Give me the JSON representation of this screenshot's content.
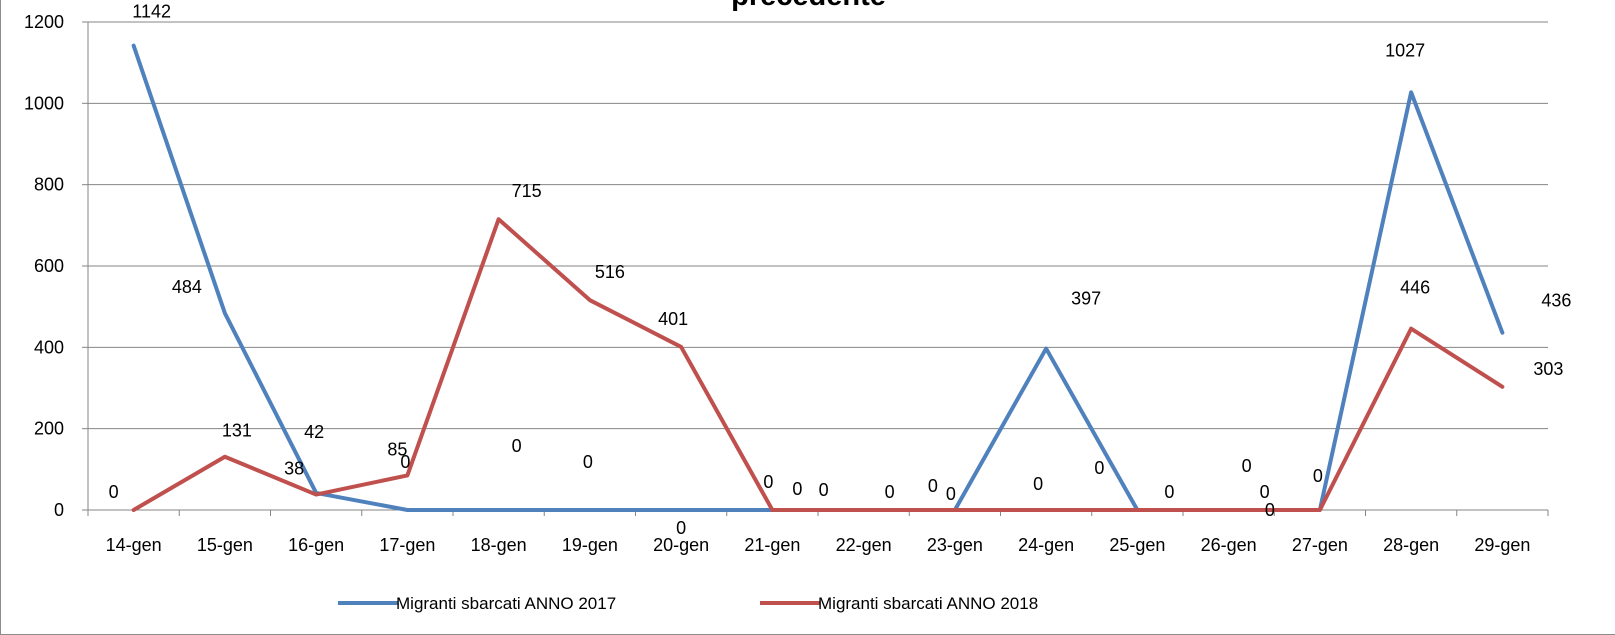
{
  "chart_data": {
    "type": "line",
    "title": "precedente",
    "categories": [
      "14-gen",
      "15-gen",
      "16-gen",
      "17-gen",
      "18-gen",
      "19-gen",
      "20-gen",
      "21-gen",
      "22-gen",
      "23-gen",
      "24-gen",
      "25-gen",
      "26-gen",
      "27-gen",
      "28-gen",
      "29-gen"
    ],
    "series": [
      {
        "name": "Migranti sbarcati ANNO 2017",
        "color": "#4f81bd",
        "values": [
          1142,
          484,
          42,
          0,
          0,
          0,
          0,
          0,
          0,
          0,
          397,
          0,
          0,
          0,
          1027,
          436
        ]
      },
      {
        "name": "Migranti sbarcati ANNO 2018",
        "color": "#c0504d",
        "values": [
          0,
          131,
          38,
          85,
          715,
          516,
          401,
          0,
          0,
          0,
          0,
          0,
          0,
          0,
          446,
          303
        ]
      }
    ],
    "ylim": [
      0,
      1200
    ],
    "yticks": [
      0,
      200,
      400,
      600,
      800,
      1000,
      1200
    ],
    "grid": true,
    "legend": "bottom"
  }
}
